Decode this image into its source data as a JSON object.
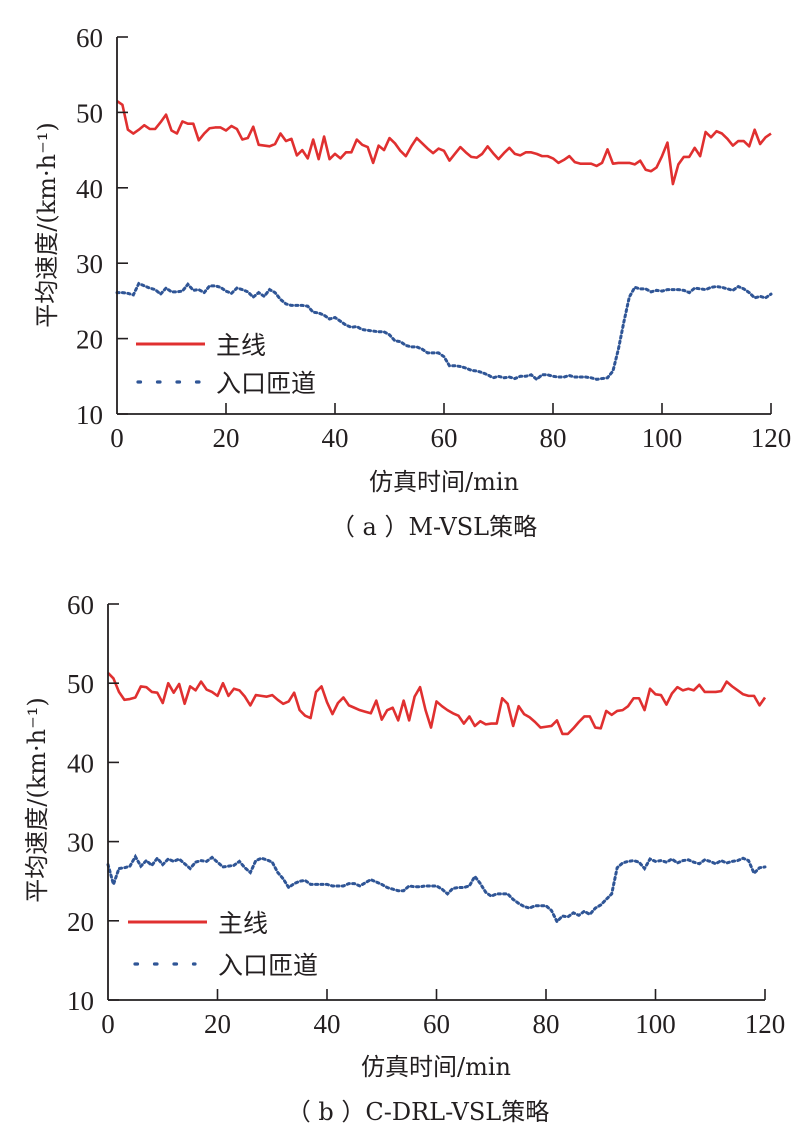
{
  "colors": {
    "mainline": "#e03030",
    "ramp": "#2f5596",
    "axis": "#231f20"
  },
  "chart_data": [
    {
      "type": "line",
      "title": "（ a ）M-VSL策略",
      "xlabel": "仿真时间/min",
      "ylabel": "平均速度/(km·h⁻¹)",
      "xlim": [
        0,
        120
      ],
      "ylim": [
        10,
        60
      ],
      "xticks": [
        "0",
        "20",
        "40",
        "60",
        "80",
        "100",
        "120"
      ],
      "yticks": [
        "10",
        "20",
        "30",
        "40",
        "50",
        "60"
      ],
      "grid": false,
      "legend_position": "bottom-left",
      "series": [
        {
          "name": "主线",
          "style": "solid",
          "x": [
            0,
            1,
            2,
            3,
            4,
            5,
            6,
            7,
            8,
            9,
            10,
            11,
            12,
            13,
            14,
            15,
            16,
            17,
            18,
            19,
            20,
            21,
            22,
            23,
            24,
            25,
            26,
            27,
            28,
            29,
            30,
            31,
            32,
            33,
            34,
            35,
            36,
            37,
            38,
            39,
            40,
            41,
            42,
            43,
            44,
            45,
            46,
            47,
            48,
            49,
            50,
            51,
            52,
            53,
            54,
            55,
            56,
            57,
            58,
            59,
            60,
            61,
            62,
            63,
            64,
            65,
            66,
            67,
            68,
            69,
            70,
            71,
            72,
            73,
            74,
            75,
            76,
            77,
            78,
            79,
            80,
            81,
            82,
            83,
            84,
            85,
            86,
            87,
            88,
            89,
            90,
            91,
            92,
            93,
            94,
            95,
            96,
            97,
            98,
            99,
            100,
            101,
            102,
            103,
            104,
            105,
            106,
            107,
            108,
            109,
            110,
            111,
            112,
            113,
            114,
            115,
            116,
            117,
            118,
            119,
            120
          ],
          "values": [
            51.5,
            51,
            47.7,
            47.2,
            47.7,
            48.3,
            47.8,
            47.8,
            48.7,
            49.7,
            47.6,
            47.2,
            48.8,
            48.5,
            48.5,
            46.3,
            47.2,
            47.9,
            48,
            48,
            47.6,
            48.2,
            47.8,
            46.4,
            46.6,
            48.1,
            45.7,
            45.6,
            45.5,
            45.8,
            47.2,
            46.2,
            46.5,
            44.3,
            45,
            43.9,
            46.4,
            43.8,
            46.8,
            43.8,
            44.5,
            43.9,
            44.7,
            44.7,
            46.4,
            45.7,
            45.4,
            43.3,
            45.6,
            45,
            46.6,
            45.9,
            44.9,
            44.2,
            45.5,
            46.6,
            45.9,
            45.2,
            44.6,
            45.2,
            44.9,
            43.6,
            44.5,
            45.4,
            44.7,
            44.1,
            44,
            44.5,
            45.5,
            44.6,
            43.8,
            44.6,
            45.3,
            44.5,
            44.3,
            44.7,
            44.7,
            44.5,
            44.2,
            44.2,
            43.9,
            43.3,
            43.7,
            44.2,
            43.4,
            43.2,
            43.2,
            43.2,
            42.9,
            43.3,
            45.1,
            43.2,
            43.3,
            43.3,
            43.3,
            43.1,
            43.6,
            42.4,
            42.2,
            42.7,
            44.2,
            46,
            40.5,
            43.1,
            44.1,
            44.1,
            45.3,
            44.2,
            47.4,
            46.7,
            47.5,
            47.2,
            46.5,
            45.6,
            46.2,
            46.2,
            45.5,
            47.7,
            45.8,
            46.7,
            47.2
          ]
        },
        {
          "name": "入口匝道",
          "style": "dotted",
          "x": [
            0,
            1,
            2,
            3,
            4,
            5,
            6,
            7,
            8,
            9,
            10,
            11,
            12,
            13,
            14,
            15,
            16,
            17,
            18,
            19,
            20,
            21,
            22,
            23,
            24,
            25,
            26,
            27,
            28,
            29,
            30,
            31,
            32,
            33,
            34,
            35,
            36,
            37,
            38,
            39,
            40,
            41,
            42,
            43,
            44,
            45,
            46,
            47,
            48,
            49,
            50,
            51,
            52,
            53,
            54,
            55,
            56,
            57,
            58,
            59,
            60,
            61,
            62,
            63,
            64,
            65,
            66,
            67,
            68,
            69,
            70,
            71,
            72,
            73,
            74,
            75,
            76,
            77,
            78,
            79,
            80,
            81,
            82,
            83,
            84,
            85,
            86,
            87,
            88,
            89,
            90,
            91,
            92,
            93,
            94,
            95,
            96,
            97,
            98,
            99,
            100,
            101,
            102,
            103,
            104,
            105,
            106,
            107,
            108,
            109,
            110,
            111,
            112,
            113,
            114,
            115,
            116,
            117,
            118,
            119,
            120
          ],
          "values": [
            26.1,
            26.1,
            26,
            25.8,
            27.3,
            27,
            26.7,
            26.5,
            25.9,
            26.7,
            26.2,
            26.2,
            26.3,
            27.2,
            26.4,
            26.5,
            26.1,
            27,
            27,
            26.8,
            26.3,
            26,
            26.7,
            26.5,
            26.2,
            25.5,
            26.1,
            25.6,
            26.5,
            26.1,
            25.2,
            24.6,
            24.4,
            24.4,
            24.4,
            24.3,
            23.5,
            23.4,
            23.1,
            22.6,
            22.8,
            22.3,
            21.8,
            21.5,
            21.6,
            21.2,
            21.1,
            21,
            20.9,
            20.9,
            20.5,
            19.7,
            19.6,
            19.1,
            18.9,
            18.9,
            18.6,
            18.1,
            18.1,
            18.1,
            17.6,
            16.4,
            16.4,
            16.3,
            16.1,
            15.8,
            15.7,
            15.5,
            15.2,
            14.8,
            15,
            14.8,
            14.9,
            14.7,
            15,
            15,
            15.2,
            14.6,
            15.2,
            15.2,
            15,
            14.9,
            14.9,
            15.1,
            14.9,
            14.9,
            14.9,
            14.8,
            14.6,
            14.7,
            14.8,
            15.7,
            18.6,
            22.2,
            25.5,
            26.8,
            26.6,
            26.6,
            26.2,
            26.4,
            26.3,
            26.5,
            26.5,
            26.5,
            26.4,
            26.1,
            26.7,
            26.6,
            26.5,
            26.8,
            26.9,
            26.8,
            26.6,
            26.4,
            26.9,
            26.6,
            26.1,
            25.4,
            25.6,
            25.4,
            25.9
          ]
        }
      ],
      "legend": [
        "主线",
        "入口匝道"
      ]
    },
    {
      "type": "line",
      "title": "（ b ）C-DRL-VSL策略",
      "xlabel": "仿真时间/min",
      "ylabel": "平均速度/(km·h⁻¹)",
      "xlim": [
        0,
        120
      ],
      "ylim": [
        10,
        60
      ],
      "xticks": [
        "0",
        "20",
        "40",
        "60",
        "80",
        "100",
        "120"
      ],
      "yticks": [
        "10",
        "20",
        "30",
        "40",
        "50",
        "60"
      ],
      "grid": false,
      "legend_position": "bottom-left",
      "series": [
        {
          "name": "主线",
          "style": "solid",
          "x": [
            0,
            1,
            2,
            3,
            4,
            5,
            6,
            7,
            8,
            9,
            10,
            11,
            12,
            13,
            14,
            15,
            16,
            17,
            18,
            19,
            20,
            21,
            22,
            23,
            24,
            25,
            26,
            27,
            28,
            29,
            30,
            31,
            32,
            33,
            34,
            35,
            36,
            37,
            38,
            39,
            40,
            41,
            42,
            43,
            44,
            45,
            46,
            47,
            48,
            49,
            50,
            51,
            52,
            53,
            54,
            55,
            56,
            57,
            58,
            59,
            60,
            61,
            62,
            63,
            64,
            65,
            66,
            67,
            68,
            69,
            70,
            71,
            72,
            73,
            74,
            75,
            76,
            77,
            78,
            79,
            80,
            81,
            82,
            83,
            84,
            85,
            86,
            87,
            88,
            89,
            90,
            91,
            92,
            93,
            94,
            95,
            96,
            97,
            98,
            99,
            100,
            101,
            102,
            103,
            104,
            105,
            106,
            107,
            108,
            109,
            110,
            111,
            112,
            113,
            114,
            115,
            116,
            117,
            118,
            119,
            120
          ],
          "values": [
            51.3,
            50.6,
            48.9,
            47.9,
            48,
            48.2,
            49.6,
            49.5,
            48.9,
            48.8,
            47.5,
            50,
            48.8,
            49.9,
            47.4,
            49.6,
            49.1,
            50.2,
            49.2,
            48.9,
            48.4,
            50,
            48.4,
            49.3,
            49.1,
            48.3,
            47.2,
            48.5,
            48.4,
            48.3,
            48.5,
            47.9,
            47.4,
            47.7,
            48.8,
            46.6,
            45.9,
            45.6,
            48.9,
            49.6,
            47.6,
            46.1,
            47.5,
            48.2,
            47.2,
            46.9,
            46.6,
            46.4,
            46.2,
            47.8,
            45.4,
            46.6,
            46.9,
            45.3,
            47.8,
            45.3,
            48.3,
            49.5,
            46.6,
            44.4,
            47.7,
            47.1,
            46.6,
            46.2,
            45.9,
            44.9,
            45.8,
            44.6,
            45.2,
            44.8,
            44.9,
            44.9,
            48.1,
            47.4,
            44.6,
            47.1,
            46.1,
            45.7,
            45.1,
            44.4,
            44.5,
            44.6,
            45.3,
            43.6,
            43.6,
            44.3,
            45.1,
            45.8,
            45.8,
            44.4,
            44.3,
            46.5,
            46,
            46.5,
            46.6,
            47.1,
            48.1,
            48.1,
            46.6,
            49.3,
            48.6,
            48.5,
            47.3,
            48.7,
            49.5,
            49.1,
            49.3,
            49.1,
            49.8,
            48.9,
            48.9,
            48.9,
            49,
            50.2,
            49.6,
            49.1,
            48.6,
            48.4,
            48.4,
            47.2,
            48.2
          ]
        },
        {
          "name": "入口匝道",
          "style": "dotted",
          "x": [
            0,
            1,
            2,
            3,
            4,
            5,
            6,
            7,
            8,
            9,
            10,
            11,
            12,
            13,
            14,
            15,
            16,
            17,
            18,
            19,
            20,
            21,
            22,
            23,
            24,
            25,
            26,
            27,
            28,
            29,
            30,
            31,
            32,
            33,
            34,
            35,
            36,
            37,
            38,
            39,
            40,
            41,
            42,
            43,
            44,
            45,
            46,
            47,
            48,
            49,
            50,
            51,
            52,
            53,
            54,
            55,
            56,
            57,
            58,
            59,
            60,
            61,
            62,
            63,
            64,
            65,
            66,
            67,
            68,
            69,
            70,
            71,
            72,
            73,
            74,
            75,
            76,
            77,
            78,
            79,
            80,
            81,
            82,
            83,
            84,
            85,
            86,
            87,
            88,
            89,
            90,
            91,
            92,
            93,
            94,
            95,
            96,
            97,
            98,
            99,
            100,
            101,
            102,
            103,
            104,
            105,
            106,
            107,
            108,
            109,
            110,
            111,
            112,
            113,
            114,
            115,
            116,
            117,
            118,
            119,
            120
          ],
          "values": [
            27.1,
            24.6,
            26.6,
            26.7,
            26.9,
            28.1,
            26.9,
            27.6,
            27,
            27.9,
            27.1,
            27.8,
            27.5,
            27.8,
            27.2,
            26.6,
            27.4,
            27.6,
            27.5,
            28,
            27.4,
            26.8,
            26.9,
            27,
            27.5,
            26.7,
            26.1,
            27.6,
            27.9,
            27.7,
            27.4,
            26.1,
            25.3,
            24.2,
            24.7,
            25,
            25.1,
            24.6,
            24.6,
            24.6,
            24.6,
            24.4,
            24.4,
            24.4,
            24.7,
            24.7,
            24.4,
            24.8,
            25.2,
            24.9,
            24.6,
            24.2,
            24,
            23.8,
            23.8,
            24.4,
            24.3,
            24.3,
            24.4,
            24.4,
            24.4,
            24,
            23.4,
            24.1,
            24.2,
            24.2,
            24.4,
            25.6,
            24.7,
            23.6,
            23.1,
            23.4,
            23.4,
            23.4,
            22.7,
            22.2,
            21.8,
            21.6,
            21.9,
            21.9,
            21.9,
            21.3,
            19.9,
            20.6,
            20.5,
            21,
            20.7,
            21.2,
            20.8,
            21.6,
            22,
            22.7,
            23.4,
            26.7,
            27.3,
            27.5,
            27.6,
            27.4,
            26.6,
            27.8,
            27.5,
            27.6,
            27.4,
            27.8,
            27.3,
            27.6,
            27.7,
            27.4,
            27.2,
            27.7,
            27.5,
            27.2,
            27.6,
            27.3,
            27.5,
            27.6,
            27.9,
            27.6,
            26,
            26.7,
            26.8
          ]
        }
      ],
      "legend": [
        "主线",
        "入口匝道"
      ]
    }
  ]
}
